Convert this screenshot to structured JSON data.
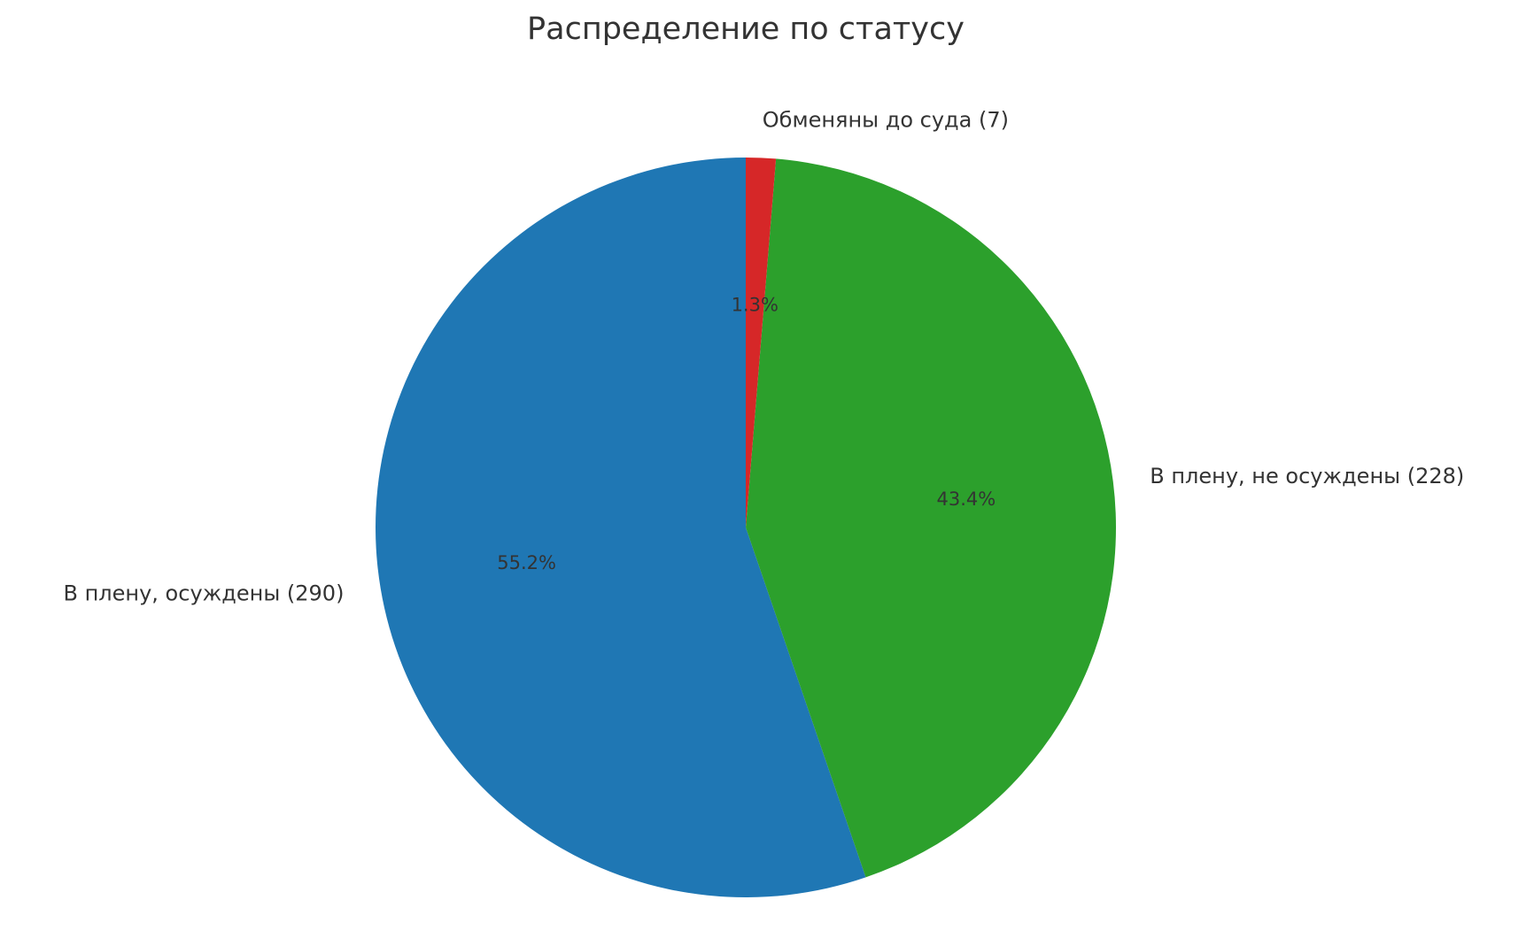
{
  "chart_data": {
    "type": "pie",
    "title": "Распределение по статусу",
    "categories": [
      "В плену, осуждены (290)",
      "В плену, не осуждены (228)",
      "Обменяны до суда (7)"
    ],
    "values": [
      55.2,
      43.4,
      1.3
    ],
    "value_labels": [
      "55.2%",
      "43.4%",
      "1.3%"
    ],
    "colors": [
      "#1f77b4",
      "#2ca02c",
      "#d62728"
    ]
  }
}
